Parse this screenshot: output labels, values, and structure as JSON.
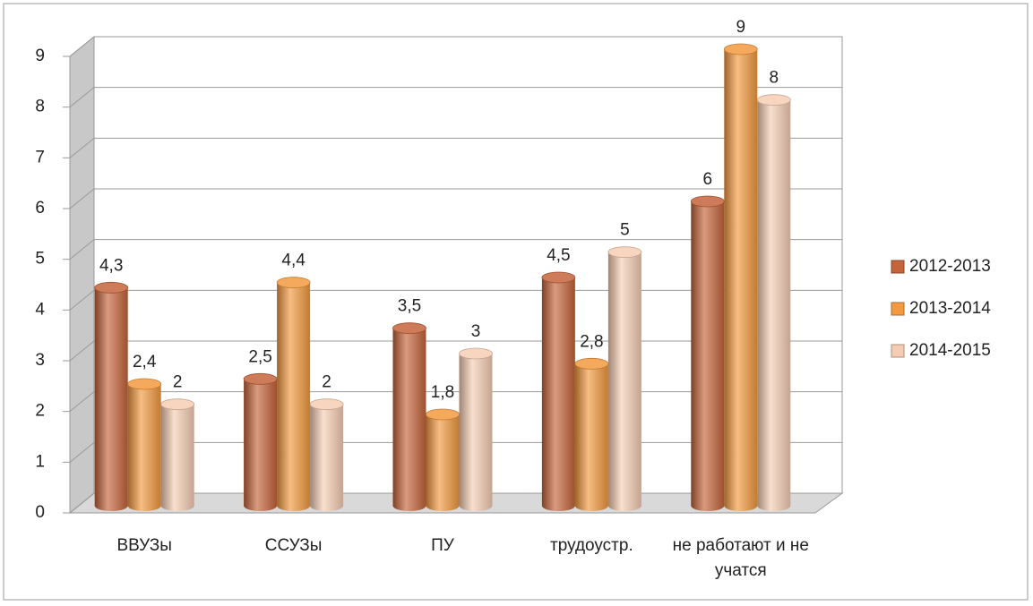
{
  "chart_data": {
    "type": "bar",
    "categories": [
      "ВВУЗы",
      "ССУЗы",
      "ПУ",
      "трудоустр.",
      "не работают и не учатся"
    ],
    "series": [
      {
        "name": "2012-2013",
        "color": "#c4643a",
        "values": [
          4.3,
          2.5,
          3.5,
          4.5,
          6
        ],
        "value_labels": [
          "4,3",
          "2,5",
          "3,5",
          "4,5",
          "6"
        ]
      },
      {
        "name": "2013-2014",
        "color": "#f39a3f",
        "values": [
          2.4,
          4.4,
          1.8,
          2.8,
          9
        ],
        "value_labels": [
          "2,4",
          "4,4",
          "1,8",
          "2,8",
          "9"
        ]
      },
      {
        "name": "2014-2015",
        "color": "#f6cdb4",
        "values": [
          2,
          2,
          3,
          5,
          8
        ],
        "value_labels": [
          "2",
          "2",
          "3",
          "5",
          "8"
        ]
      }
    ],
    "ylim": [
      0,
      9
    ],
    "yticks": [
      0,
      1,
      2,
      3,
      4,
      5,
      6,
      7,
      8,
      9
    ],
    "grid": true,
    "legend": "right"
  }
}
